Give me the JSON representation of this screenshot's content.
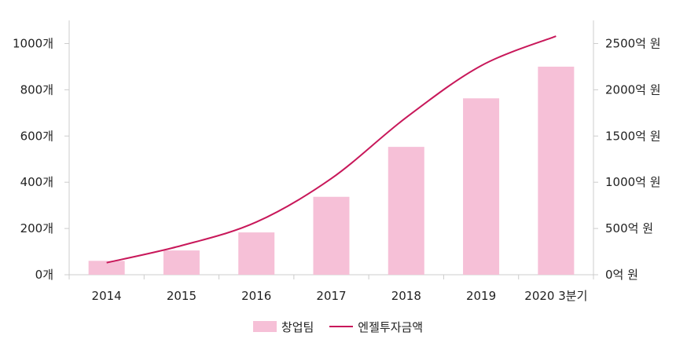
{
  "chart_data": {
    "type": "bar+line",
    "categories": [
      "2014",
      "2015",
      "2016",
      "2017",
      "2018",
      "2019",
      "2020 3분기"
    ],
    "series": [
      {
        "name": "창업팀",
        "type": "bar",
        "axis": "left",
        "values": [
          60,
          105,
          183,
          337,
          553,
          763,
          900
        ]
      },
      {
        "name": "엔젤투자금액",
        "type": "line",
        "axis": "right",
        "values": [
          130,
          315,
          570,
          1040,
          1700,
          2260,
          2580
        ]
      }
    ],
    "y_left": {
      "ticks": [
        "0개",
        "200개",
        "400개",
        "600개",
        "800개",
        "1000개"
      ],
      "min": 0,
      "max": 1000,
      "range_top": 1100
    },
    "y_right": {
      "ticks": [
        "0억 원",
        "500억 원",
        "1000억 원",
        "1500억 원",
        "2000억 원",
        "2500억 원"
      ],
      "min": 0,
      "max": 2500,
      "range_top": 2750
    },
    "title": "",
    "legend_position": "bottom",
    "grid": false
  },
  "colors": {
    "bar": "#f6c0d7",
    "line": "#c8185a",
    "axis": "#cccccc"
  }
}
